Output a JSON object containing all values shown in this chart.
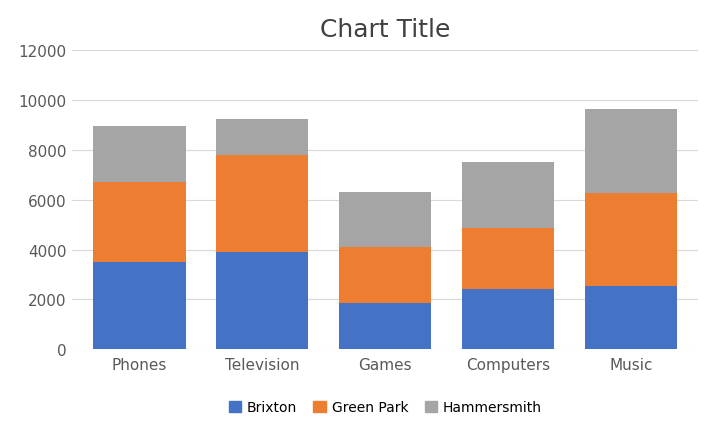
{
  "title": "Chart Title",
  "categories": [
    "Phones",
    "Television",
    "Games",
    "Computers",
    "Music"
  ],
  "series": {
    "Brixton": [
      3500,
      3900,
      1850,
      2400,
      2550
    ],
    "Green Park": [
      3200,
      3900,
      2250,
      2450,
      3700
    ],
    "Hammersmith": [
      2250,
      1450,
      2200,
      2650,
      3400
    ]
  },
  "colors": {
    "Brixton": "#4472C4",
    "Green Park": "#ED7D31",
    "Hammersmith": "#A5A5A5"
  },
  "ylim": [
    0,
    12000
  ],
  "yticks": [
    0,
    2000,
    4000,
    6000,
    8000,
    10000,
    12000
  ],
  "title_fontsize": 18,
  "background_color": "#ffffff",
  "bar_width": 0.75,
  "grid_color": "#d9d9d9",
  "legend_fontsize": 10,
  "tick_fontsize": 11,
  "title_color": "#404040"
}
